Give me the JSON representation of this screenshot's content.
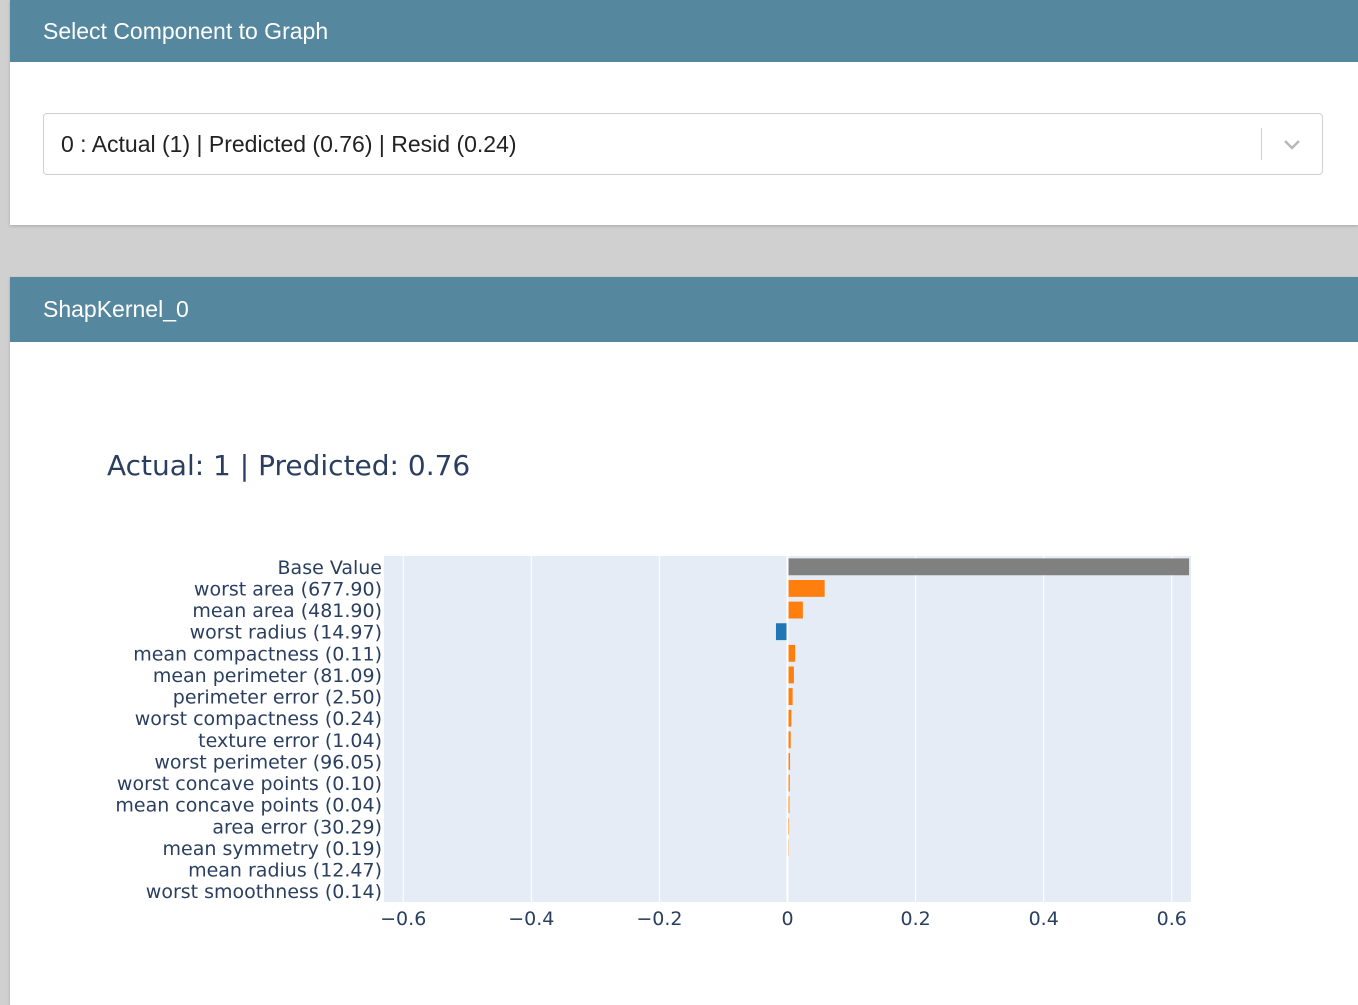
{
  "selector_card": {
    "title": "Select Component to Graph",
    "selected_value": "0 : Actual (1) | Predicted (0.76) | Resid (0.24)"
  },
  "chart_card": {
    "title": "ShapKernel_0"
  },
  "colors": {
    "header": "#55889f",
    "base": "#808080",
    "positive": "#ff7f0e",
    "negative": "#1f77b4",
    "plot_bg": "#e5ecf6"
  },
  "chart_data": {
    "type": "bar",
    "orientation": "horizontal",
    "title": "Actual: 1 | Predicted: 0.76",
    "categories": [
      "Base Value",
      "worst area (677.90)",
      "mean area (481.90)",
      "worst radius (14.97)",
      "mean compactness (0.11)",
      "mean perimeter (81.09)",
      "perimeter error (2.50)",
      "worst compactness (0.24)",
      "texture error (1.04)",
      "worst perimeter (96.05)",
      "worst concave points (0.10)",
      "mean concave points (0.04)",
      "area error (30.29)",
      "mean symmetry (0.19)",
      "mean radius (12.47)",
      "worst smoothness (0.14)"
    ],
    "values": [
      0.627,
      0.058,
      0.024,
      -0.018,
      0.012,
      0.01,
      0.008,
      0.006,
      0.005,
      0.004,
      0.0035,
      0.003,
      0.0025,
      0.002,
      0.0015,
      0.001
    ],
    "xlim": [
      -0.63,
      0.63
    ],
    "xticks": [
      -0.6,
      -0.4,
      -0.2,
      0,
      0.2,
      0.4,
      0.6
    ],
    "xtick_labels": [
      "−0.6",
      "−0.4",
      "−0.2",
      "0",
      "0.2",
      "0.4",
      "0.6"
    ],
    "grid": true
  }
}
